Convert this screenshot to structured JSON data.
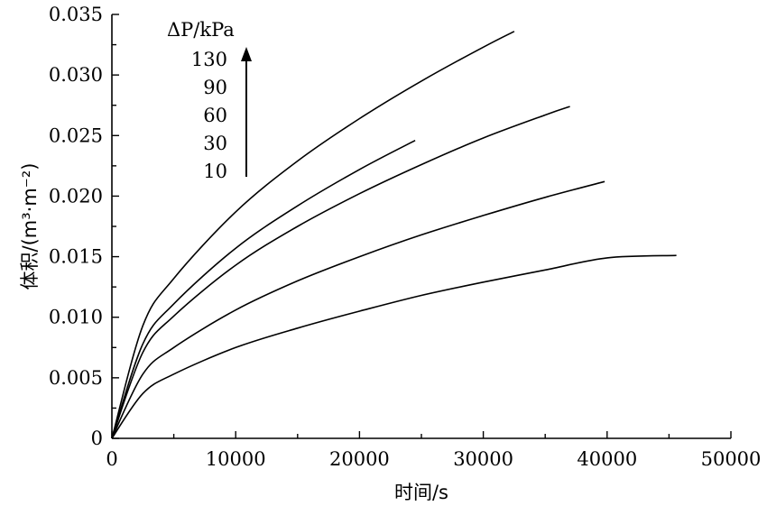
{
  "chart_data": {
    "type": "line",
    "xlabel": "时间/s",
    "ylabel": "体积/(m³·m⁻²)",
    "xlim": [
      0,
      50000
    ],
    "ylim": [
      0,
      0.035
    ],
    "xticks": [
      "0",
      "10000",
      "20000",
      "30000",
      "40000",
      "50000"
    ],
    "yticks": [
      "0",
      "0.005",
      "0.010",
      "0.015",
      "0.020",
      "0.025",
      "0.030",
      "0.035"
    ],
    "legend": {
      "title": "ΔP/kPa",
      "entries": [
        "130",
        "90",
        "60",
        "30",
        "10"
      ],
      "placement": "top-left"
    },
    "series": [
      {
        "name": "130",
        "x": [
          0,
          2500,
          5000,
          10000,
          15000,
          20000,
          25000,
          30000,
          32500
        ],
        "y": [
          0,
          0.0093,
          0.0132,
          0.0187,
          0.0229,
          0.0264,
          0.0295,
          0.0323,
          0.0336
        ]
      },
      {
        "name": "90",
        "x": [
          0,
          2500,
          5000,
          10000,
          15000,
          20000,
          24500
        ],
        "y": [
          0,
          0.0078,
          0.0111,
          0.0157,
          0.0192,
          0.0222,
          0.0246
        ]
      },
      {
        "name": "60",
        "x": [
          0,
          2500,
          5000,
          10000,
          15000,
          20000,
          25000,
          30000,
          35000,
          37000
        ],
        "y": [
          0,
          0.0071,
          0.0101,
          0.0143,
          0.0175,
          0.0202,
          0.0226,
          0.0248,
          0.0267,
          0.0274
        ]
      },
      {
        "name": "30",
        "x": [
          0,
          2500,
          5000,
          10000,
          15000,
          20000,
          25000,
          30000,
          35000,
          39800
        ],
        "y": [
          0,
          0.0053,
          0.0075,
          0.0106,
          0.013,
          0.015,
          0.0168,
          0.0184,
          0.0199,
          0.0212
        ]
      },
      {
        "name": "10",
        "x": [
          0,
          2500,
          5000,
          10000,
          15000,
          20000,
          25000,
          30000,
          35000,
          40000,
          45600
        ],
        "y": [
          0,
          0.0037,
          0.0053,
          0.0075,
          0.0091,
          0.0105,
          0.0118,
          0.0129,
          0.0139,
          0.0149,
          0.0151
        ]
      }
    ]
  }
}
